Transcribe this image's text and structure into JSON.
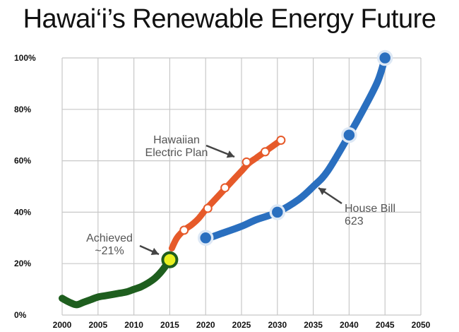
{
  "chart_data": {
    "type": "line",
    "title": "Hawai‘i’s Renewable Energy Future",
    "xlabel": "",
    "ylabel": "",
    "xlim": [
      2000,
      2050
    ],
    "ylim": [
      0,
      100
    ],
    "x_ticks": [
      "2000",
      "2005",
      "2010",
      "2015",
      "2020",
      "2025",
      "2030",
      "2035",
      "2040",
      "2045",
      "2050"
    ],
    "y_ticks": [
      "0%",
      "20%",
      "40%",
      "60%",
      "80%",
      "100%"
    ],
    "grid": true,
    "series": [
      {
        "name": "Achieved",
        "color": "#1e5e1e",
        "x": [
          2000,
          2001,
          2002,
          2003,
          2004,
          2005,
          2006,
          2007,
          2008,
          2009,
          2010,
          2011,
          2012,
          2013,
          2014,
          2015
        ],
        "values": [
          6.5,
          5,
          4,
          5,
          6,
          7,
          7.5,
          8,
          8.5,
          9,
          10,
          11,
          12.5,
          14.5,
          17.5,
          21.5
        ],
        "markers": [
          {
            "x": 2015,
            "y": 21.5
          }
        ]
      },
      {
        "name": "Hawaiian Electric Plan",
        "color": "#e65a2a",
        "x": [
          2015.3,
          2016,
          2017,
          2018,
          2019,
          2020,
          2021,
          2022,
          2023,
          2024,
          2025,
          2026,
          2027,
          2028,
          2029,
          2030.5
        ],
        "values": [
          26,
          30,
          33,
          35,
          37.5,
          41,
          44,
          47,
          50,
          53,
          56,
          59,
          61,
          63,
          65,
          68
        ],
        "markers": [
          {
            "x": 2017,
            "y": 33
          },
          {
            "x": 2020.3,
            "y": 41.5
          },
          {
            "x": 2022.7,
            "y": 49.5
          },
          {
            "x": 2025.7,
            "y": 59.5
          },
          {
            "x": 2028.3,
            "y": 63.5
          },
          {
            "x": 2030.5,
            "y": 68
          }
        ]
      },
      {
        "name": "House Bill 623",
        "color": "#2a6fbf",
        "x": [
          2020,
          2022,
          2025,
          2027,
          2030,
          2033,
          2035,
          2037,
          2040,
          2042,
          2044,
          2045
        ],
        "values": [
          29.5,
          31.5,
          34.5,
          37,
          40,
          45,
          50,
          56,
          70,
          80,
          91,
          100
        ],
        "markers": [
          {
            "x": 2020,
            "y": 30
          },
          {
            "x": 2030,
            "y": 40
          },
          {
            "x": 2040,
            "y": 70
          },
          {
            "x": 2045,
            "y": 100
          }
        ]
      }
    ],
    "annotations": [
      {
        "text_lines": [
          "Hawaiian",
          "Electric Plan"
        ]
      },
      {
        "text_lines": [
          "House Bill",
          "623"
        ]
      },
      {
        "text_lines": [
          "Achieved",
          "~21%"
        ]
      }
    ]
  }
}
